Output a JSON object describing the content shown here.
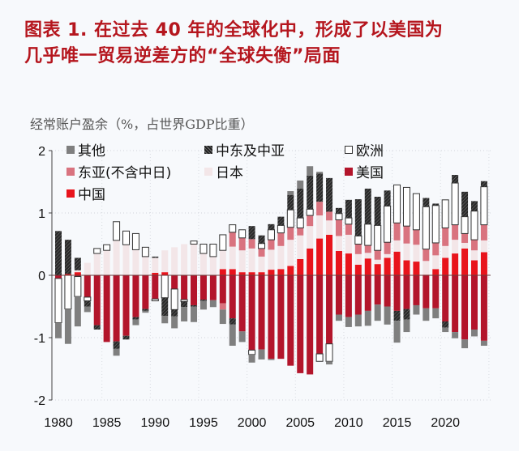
{
  "title": {
    "line1": "图表 1. 在过去 40 年的全球化中，形成了以美国为",
    "line2": "几乎唯一贸易逆差方的“全球失衡”局面"
  },
  "chart_data": {
    "type": "bar",
    "stacked": true,
    "title": "图表 1. 在过去 40 年的全球化中，形成了以美国为几乎唯一贸易逆差方的“全球失衡”局面",
    "ylabel": "经常账户盈余（%，占世界GDP比重）",
    "xlabel": "",
    "ylim": [
      -2,
      2
    ],
    "yticks": [
      "2",
      "1",
      "0",
      "-1",
      "-2"
    ],
    "ytick_values": [
      2,
      1,
      0,
      -1,
      -2
    ],
    "xtick_labels": [
      "1980",
      "1985",
      "1990",
      "1995",
      "2000",
      "2005",
      "2010",
      "2015",
      "2020"
    ],
    "grid": true,
    "legend_position": "top-left",
    "x": [
      1980,
      1981,
      1982,
      1983,
      1984,
      1985,
      1986,
      1987,
      1988,
      1989,
      1990,
      1991,
      1992,
      1993,
      1994,
      1995,
      1996,
      1997,
      1998,
      1999,
      2000,
      2001,
      2002,
      2003,
      2004,
      2005,
      2006,
      2007,
      2008,
      2009,
      2010,
      2011,
      2012,
      2013,
      2014,
      2015,
      2016,
      2017,
      2018,
      2019,
      2020,
      2021,
      2022,
      2023,
      2024
    ],
    "series": [
      {
        "key": "others",
        "name": "其他",
        "color": "#7f7f7f",
        "values": [
          -0.25,
          -0.56,
          -0.48,
          -0.09,
          0,
          0,
          -0.11,
          0,
          -0.09,
          -0.03,
          0,
          -0.12,
          -0.19,
          -0.23,
          -0.25,
          -0.14,
          -0.11,
          -0.23,
          -0.34,
          -0.17,
          -0.13,
          -0.16,
          -0.02,
          0,
          0.06,
          0.13,
          0.15,
          0.03,
          -0.05,
          -0.1,
          -0.16,
          -0.19,
          -0.24,
          -0.26,
          -0.29,
          -0.35,
          -0.2,
          -0.15,
          -0.2,
          -0.16,
          -0.07,
          -0.1,
          -0.14,
          -0.11,
          -0.08
        ]
      },
      {
        "key": "mideast",
        "name": "中东及中亚",
        "color": "#333333",
        "values": [
          0.71,
          0.55,
          0.2,
          -0.09,
          -0.07,
          0,
          -0.12,
          -0.06,
          -0.04,
          -0.03,
          0.02,
          -0.29,
          -0.11,
          -0.09,
          -0.02,
          -0.02,
          0,
          0,
          -0.1,
          0,
          0.21,
          0.13,
          0.09,
          0.14,
          0.24,
          0.47,
          0.54,
          0.45,
          0.54,
          0.09,
          0.29,
          0.59,
          0.57,
          0.46,
          0.25,
          -0.16,
          -0.17,
          0,
          0.14,
          0.03,
          -0.1,
          0.13,
          0.4,
          0.16,
          0.09
        ]
      },
      {
        "key": "europe",
        "name": "欧洲",
        "color": "#ffffff",
        "values": [
          -0.71,
          -0.54,
          -0.32,
          -0.06,
          0.08,
          0.09,
          0.3,
          0.22,
          0.26,
          0.15,
          -0.03,
          -0.36,
          -0.33,
          -0.03,
          0.05,
          0.15,
          0.2,
          0.25,
          0.12,
          0.13,
          -0.07,
          0.08,
          0.16,
          0.12,
          0.28,
          0.16,
          0.1,
          -0.12,
          -0.28,
          0.1,
          0.1,
          0.13,
          0.34,
          0.4,
          0.58,
          0.61,
          0.62,
          0.58,
          0.68,
          0.6,
          0.45,
          0.67,
          0.27,
          0.46,
          0.61
        ]
      },
      {
        "key": "eastasia",
        "name": "东亚(不含中日)",
        "color": "#d9737f",
        "values": [
          0,
          0,
          0,
          0,
          0,
          0,
          0,
          0,
          0,
          0,
          0,
          0,
          0,
          0,
          0,
          0,
          0,
          -0.1,
          0.23,
          0.2,
          0.15,
          0.13,
          0.16,
          0.21,
          0.2,
          0.12,
          0.17,
          0.22,
          0.14,
          0.26,
          0.17,
          0.16,
          0.12,
          0.15,
          0.19,
          0.28,
          0.28,
          0.24,
          0.19,
          0.2,
          0.29,
          0.24,
          0.15,
          0.17,
          0.25
        ]
      },
      {
        "key": "japan",
        "name": "日本",
        "color": "#f3e6e8",
        "values": [
          0,
          0,
          0.03,
          0.2,
          0.35,
          0.4,
          0.56,
          0.49,
          0.41,
          0.3,
          0.24,
          0.35,
          0.45,
          0.5,
          0.5,
          0.35,
          0.3,
          0.3,
          0.36,
          0.35,
          0.38,
          0.25,
          0.32,
          0.37,
          0.42,
          0.38,
          0.36,
          0.37,
          0.23,
          0.24,
          0.3,
          0.17,
          0.09,
          0.07,
          0.06,
          0.18,
          0.27,
          0.27,
          0.22,
          0.22,
          0.19,
          0.22,
          0.09,
          0.16,
          0.19
        ]
      },
      {
        "key": "us",
        "name": "美国",
        "color": "#b3152b",
        "values": [
          -0.05,
          0,
          -0.02,
          -0.35,
          -0.8,
          -1.07,
          -1.06,
          -0.97,
          -0.67,
          -0.54,
          -0.38,
          0,
          -0.22,
          -0.39,
          -0.48,
          -0.39,
          -0.4,
          -0.45,
          -0.69,
          -0.9,
          -1.2,
          -1.19,
          -1.34,
          -1.34,
          -1.45,
          -1.57,
          -1.59,
          -1.26,
          -1.1,
          -0.63,
          -0.67,
          -0.63,
          -0.57,
          -0.47,
          -0.5,
          -0.57,
          -0.54,
          -0.48,
          -0.53,
          -0.53,
          -0.74,
          -0.91,
          -1.03,
          -0.87,
          -1.05
        ]
      },
      {
        "key": "china",
        "name": "中国",
        "color": "#e8141c",
        "values": [
          0,
          0.02,
          0.05,
          0,
          0,
          0,
          0,
          0,
          0,
          0,
          0.04,
          0.05,
          0,
          0,
          0,
          0,
          0,
          0.1,
          0.1,
          0.05,
          0.05,
          0.05,
          0.09,
          0.1,
          0.15,
          0.26,
          0.43,
          0.59,
          0.65,
          0.39,
          0.35,
          0.17,
          0.27,
          0.18,
          0.28,
          0.38,
          0.24,
          0.22,
          0.01,
          0.1,
          0.28,
          0.35,
          0.43,
          0.24,
          0.37
        ]
      }
    ]
  }
}
